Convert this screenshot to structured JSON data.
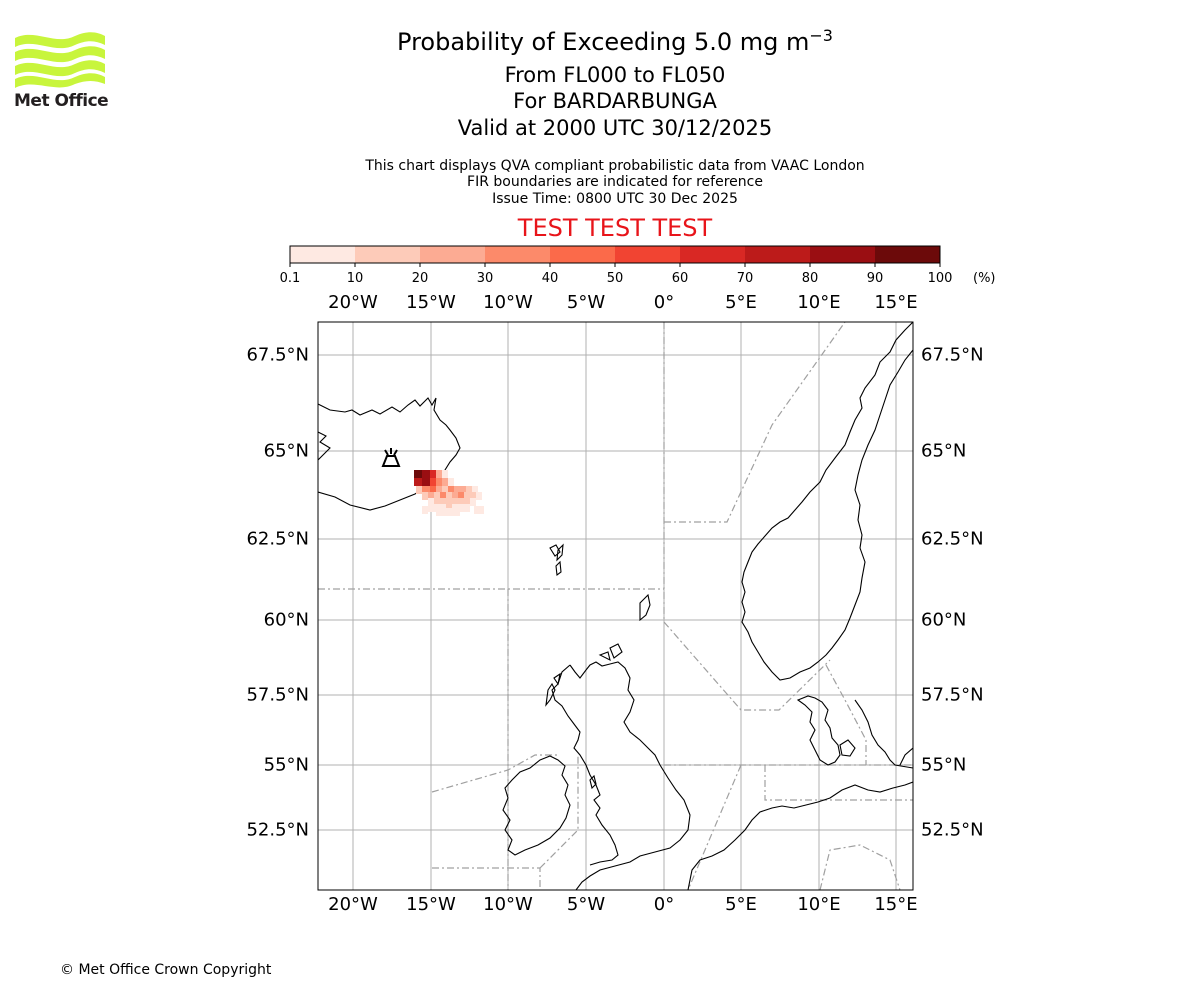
{
  "logo": {
    "text": "Met Office",
    "color": "#c8f53c"
  },
  "title": {
    "line1_prefix": "Probability of Exceeding 5.0 mg m",
    "line1_superscript": "−3",
    "line2": "From FL000 to FL050",
    "line3": "For BARDARBUNGA",
    "line4": "Valid at 2000 UTC 30/12/2025"
  },
  "info": {
    "line1": "This chart displays QVA compliant probabilistic data from VAAC London",
    "line2": "FIR boundaries are indicated for reference",
    "line3": "Issue Time: 0800 UTC 30 Dec 2025"
  },
  "test_banner": {
    "text": "TEST TEST TEST",
    "color": "#e8141a"
  },
  "colorbar": {
    "ticks": [
      "0.1",
      "10",
      "20",
      "30",
      "40",
      "50",
      "60",
      "70",
      "80",
      "90",
      "100"
    ],
    "unit": "(%)",
    "colors": [
      "#fee9e2",
      "#fdcbb9",
      "#fcab93",
      "#fc8a6a",
      "#fb6a4a",
      "#f14432",
      "#d92824",
      "#bc1b1a",
      "#9a0e12",
      "#6c0a0a"
    ]
  },
  "map": {
    "lon_labels": [
      "20°W",
      "15°W",
      "10°W",
      "5°W",
      "0°",
      "5°E",
      "10°E",
      "15°E"
    ],
    "lat_labels": [
      "67.5°N",
      "65°N",
      "62.5°N",
      "60°N",
      "57.5°N",
      "55°N",
      "52.5°N"
    ],
    "volcano_name": "BARDARBUNGA"
  },
  "copyright": "© Met Office Crown Copyright"
}
